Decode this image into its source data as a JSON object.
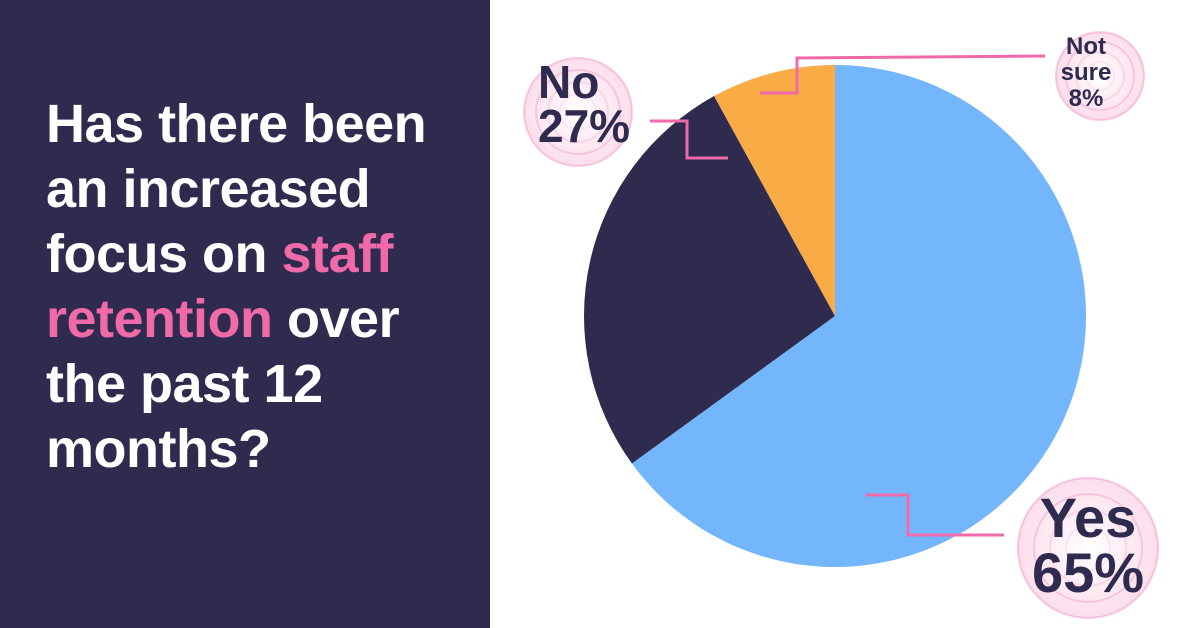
{
  "question": {
    "part1": "Has there been an increased focus on ",
    "highlight": "staff retention",
    "part2": " over the past 12 months?"
  },
  "colors": {
    "panel_bg": "#2e2b4f",
    "highlight": "#f06aaa",
    "leader": "#f06aaa"
  },
  "chart_data": {
    "type": "pie",
    "slices": [
      {
        "label": "Yes",
        "value": 65,
        "value_label": "65%",
        "color": "#74b6fb"
      },
      {
        "label": "No",
        "value": 27,
        "value_label": "27%",
        "color": "#2e2b4f"
      },
      {
        "label": "Not sure",
        "value": 8,
        "value_label": "8%",
        "color": "#f9ab45"
      }
    ],
    "start": "top",
    "direction": "clockwise"
  }
}
